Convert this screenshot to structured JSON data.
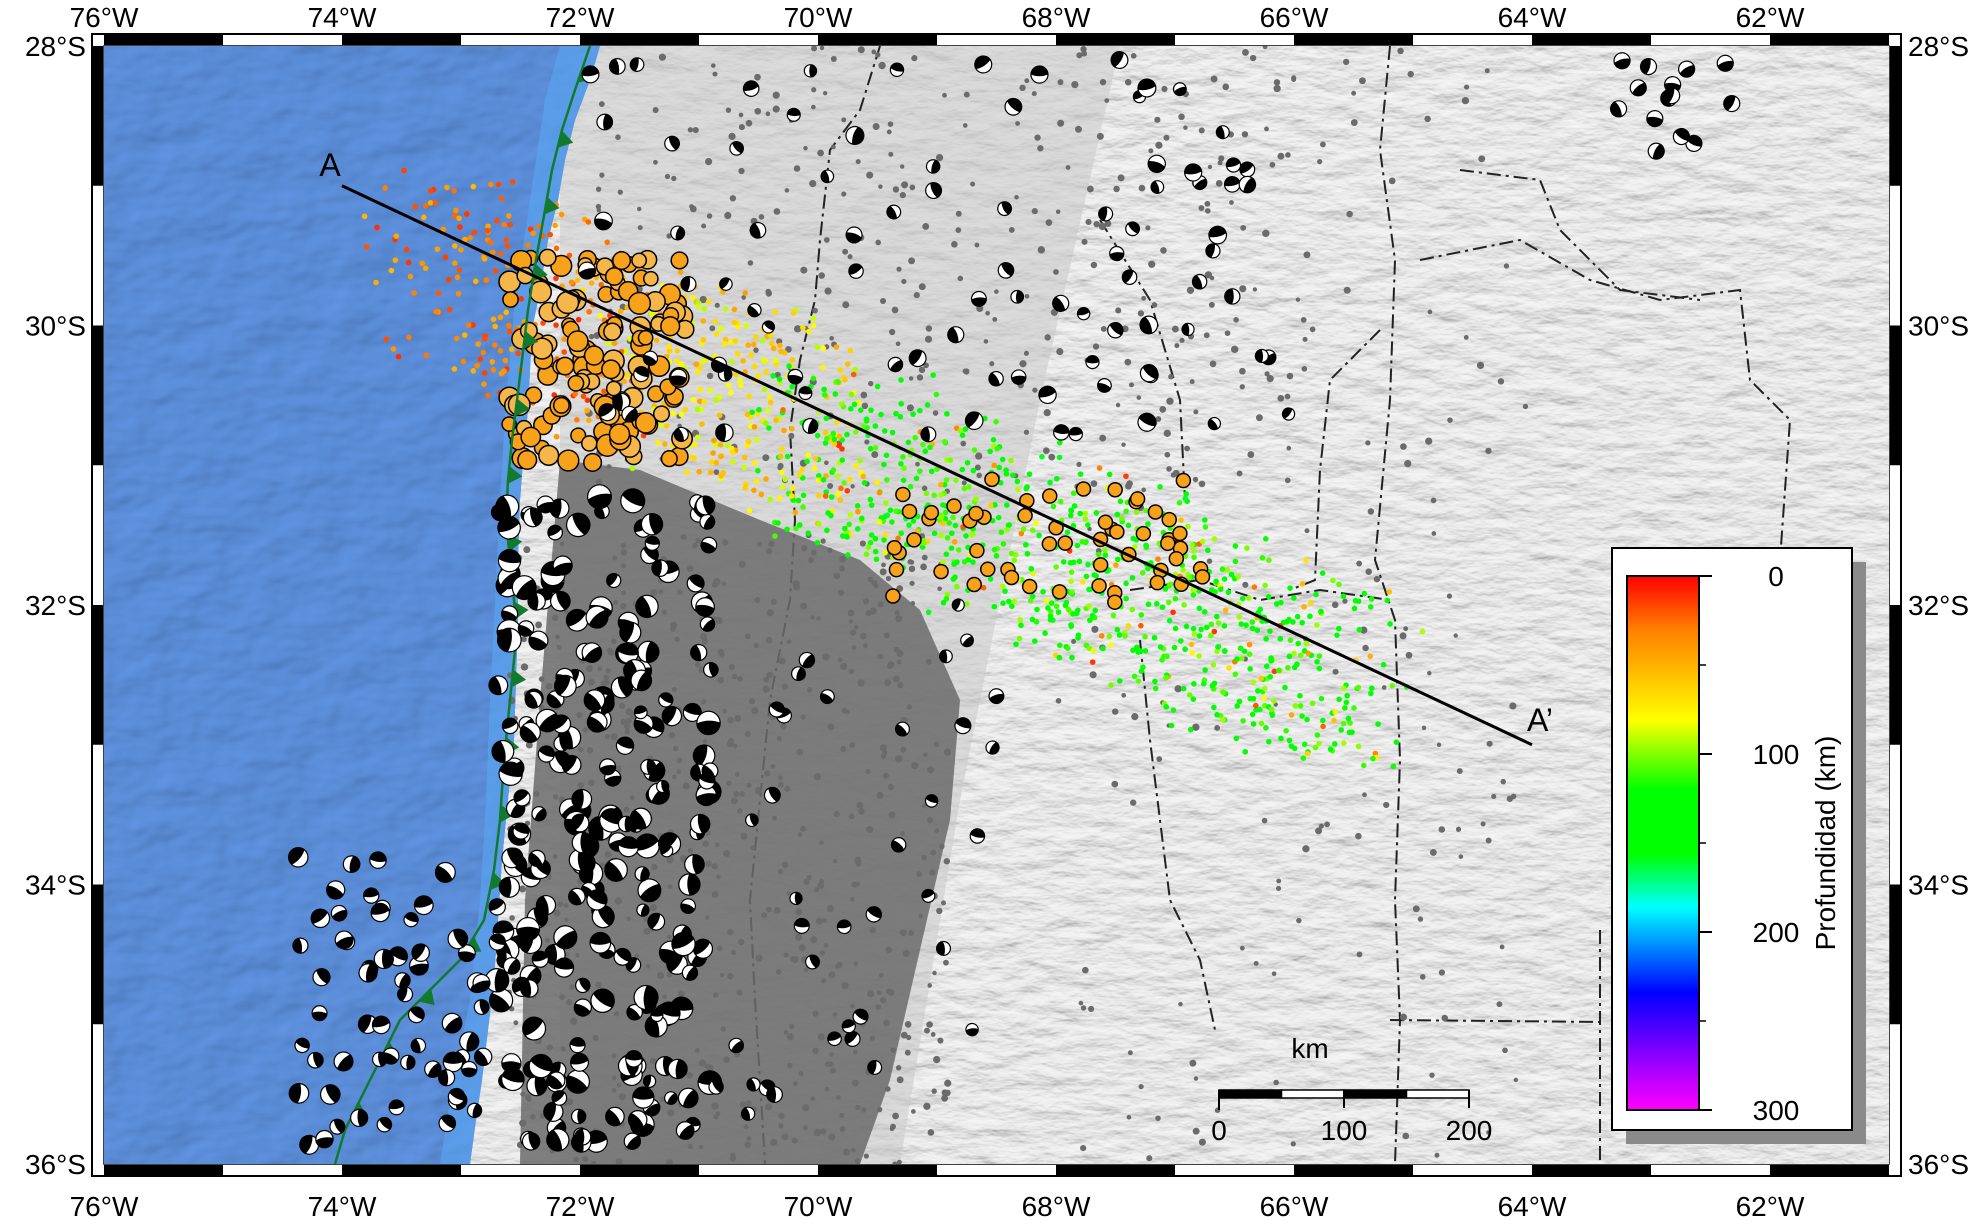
{
  "map": {
    "lon_range": [
      -76,
      -61
    ],
    "lat_range": [
      -36,
      -28
    ],
    "top_lon_labels": [
      "76°W",
      "74°W",
      "72°W",
      "70°W",
      "68°W",
      "66°W",
      "64°W",
      "62°W"
    ],
    "bottom_lon_labels": [
      "76°W",
      "74°W",
      "72°W",
      "70°W",
      "68°W",
      "66°W",
      "64°W",
      "62°W"
    ],
    "lon_label_values": [
      -76,
      -74,
      -72,
      -70,
      -68,
      -66,
      -64,
      -62
    ],
    "left_lat_labels": [
      "28°S",
      "30°S",
      "32°S",
      "34°S",
      "36°S"
    ],
    "right_lat_labels": [
      "28°S",
      "30°S",
      "32°S",
      "34°S",
      "36°S"
    ],
    "lat_label_values": [
      -28,
      -30,
      -32,
      -34,
      -36
    ],
    "colors": {
      "ocean": "#2d7fdd",
      "land": "#ececec",
      "trench": "#117a2e",
      "seismicity_gray": "#6b6b6b"
    }
  },
  "profile": {
    "start_label": "A",
    "end_label": "A’",
    "start": [
      -74,
      -29
    ],
    "end": [
      -64,
      -33
    ]
  },
  "scale_bar": {
    "unit": "km",
    "labels": [
      "0",
      "100",
      "200"
    ],
    "km_values": [
      0,
      100,
      200
    ]
  },
  "colorbar": {
    "title": "Profundidad (km)",
    "tick_labels": [
      "0",
      "100",
      "200",
      "300"
    ],
    "tick_values": [
      0,
      100,
      200,
      300
    ],
    "range": [
      0,
      300
    ],
    "colors": [
      "#ff0000",
      "#ff8800",
      "#ffff00",
      "#00ff00",
      "#00ffff",
      "#0000ff",
      "#ff00ff"
    ]
  }
}
